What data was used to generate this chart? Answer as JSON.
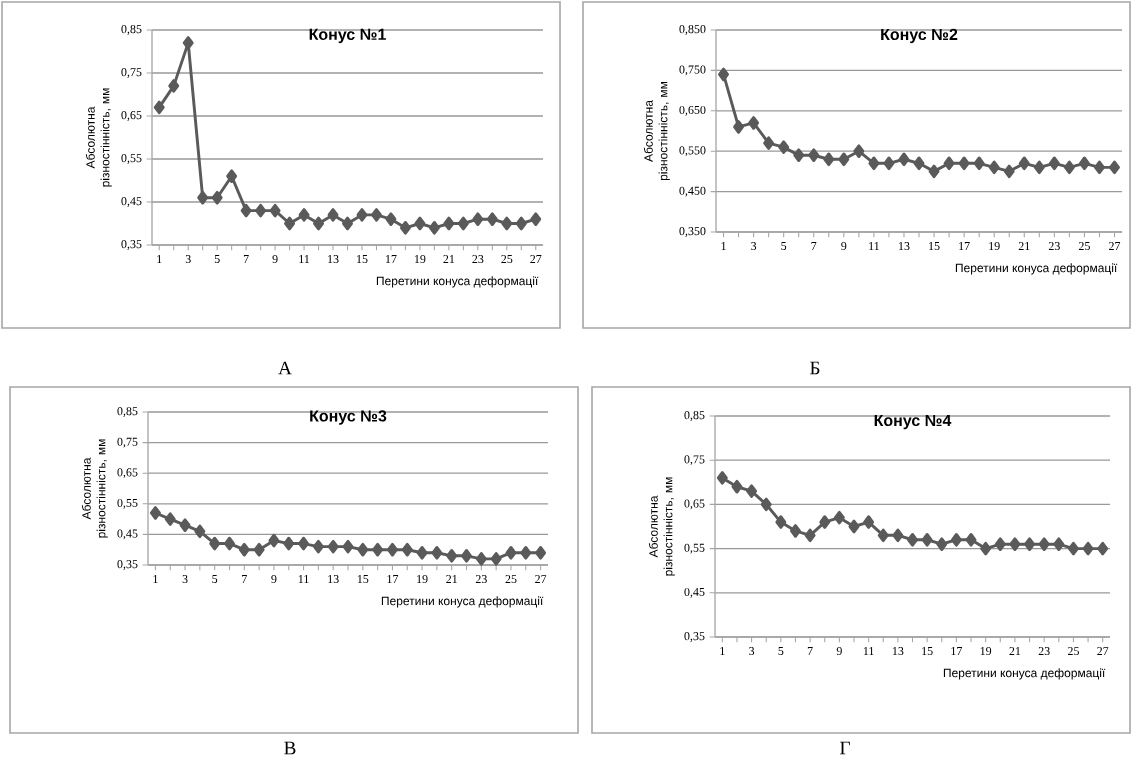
{
  "chart_data": [
    {
      "type": "line",
      "title": "Конус №1",
      "xlabel": "Перетини  конуса деформації",
      "ylabel": "Абсолютна різностінність, мм",
      "categories": [
        "1",
        null,
        "3",
        null,
        "5",
        null,
        "7",
        null,
        "9",
        null,
        "11",
        null,
        "13",
        null,
        "15",
        null,
        "17",
        null,
        "19",
        null,
        "21",
        null,
        "23",
        null,
        "25",
        null,
        "27"
      ],
      "values": [
        0.67,
        0.72,
        0.82,
        0.46,
        0.46,
        0.51,
        0.43,
        0.43,
        0.43,
        0.4,
        0.42,
        0.4,
        0.42,
        0.4,
        0.42,
        0.42,
        0.41,
        0.39,
        0.4,
        0.39,
        0.4,
        0.4,
        0.41,
        0.41,
        0.4,
        0.4,
        0.41
      ],
      "color": "#5a5a5a",
      "marker": "diamond",
      "grid": "y",
      "ylim": [
        0.35,
        0.85
      ],
      "yticks": [
        {
          "value": 0.35,
          "label": "0,35"
        },
        {
          "value": 0.45,
          "label": "0,45"
        },
        {
          "value": 0.55,
          "label": "0,55"
        },
        {
          "value": 0.65,
          "label": "0,65"
        },
        {
          "value": 0.75,
          "label": "0,75"
        },
        {
          "value": 0.85,
          "label": "0,85"
        }
      ],
      "annotations": [
        "А"
      ]
    },
    {
      "type": "line",
      "title": "Конус №2",
      "xlabel": "Перетини  конуса деформації",
      "ylabel": "Абсолютна різностінність, мм",
      "categories": [
        "1",
        null,
        "3",
        null,
        "5",
        null,
        "7",
        null,
        "9",
        null,
        "11",
        null,
        "13",
        null,
        "15",
        null,
        "17",
        null,
        "19",
        null,
        "21",
        null,
        "23",
        null,
        "25",
        null,
        "27"
      ],
      "values": [
        0.74,
        0.61,
        0.62,
        0.57,
        0.56,
        0.54,
        0.54,
        0.53,
        0.53,
        0.55,
        0.52,
        0.52,
        0.53,
        0.52,
        0.5,
        0.52,
        0.52,
        0.52,
        0.51,
        0.5,
        0.52,
        0.51,
        0.52,
        0.51,
        0.52,
        0.51,
        0.51
      ],
      "color": "#5a5a5a",
      "marker": "diamond",
      "grid": "y",
      "ylim": [
        0.35,
        0.85
      ],
      "yticks": [
        {
          "value": 0.35,
          "label": "0,350"
        },
        {
          "value": 0.45,
          "label": "0,450"
        },
        {
          "value": 0.55,
          "label": "0,550"
        },
        {
          "value": 0.65,
          "label": "0,650"
        },
        {
          "value": 0.75,
          "label": "0,750"
        },
        {
          "value": 0.85,
          "label": "0,850"
        }
      ],
      "annotations": [
        "Б"
      ]
    },
    {
      "type": "line",
      "title": "Конус №3",
      "xlabel": "Перетини  конуса деформації",
      "ylabel": "Абсолютна різностінність, мм",
      "categories": [
        "1",
        null,
        "3",
        null,
        "5",
        null,
        "7",
        null,
        "9",
        null,
        "11",
        null,
        "13",
        null,
        "15",
        null,
        "17",
        null,
        "19",
        null,
        "21",
        null,
        "23",
        null,
        "25",
        null,
        "27"
      ],
      "values": [
        0.52,
        0.5,
        0.48,
        0.46,
        0.42,
        0.42,
        0.4,
        0.4,
        0.43,
        0.42,
        0.42,
        0.41,
        0.41,
        0.41,
        0.4,
        0.4,
        0.4,
        0.4,
        0.39,
        0.39,
        0.38,
        0.38,
        0.37,
        0.37,
        0.39,
        0.39,
        0.39
      ],
      "color": "#5a5a5a",
      "marker": "diamond",
      "grid": "y",
      "ylim": [
        0.35,
        0.85
      ],
      "yticks": [
        {
          "value": 0.35,
          "label": "0,35"
        },
        {
          "value": 0.45,
          "label": "0,45"
        },
        {
          "value": 0.55,
          "label": "0,55"
        },
        {
          "value": 0.65,
          "label": "0,65"
        },
        {
          "value": 0.75,
          "label": "0,75"
        },
        {
          "value": 0.85,
          "label": "0,85"
        }
      ],
      "annotations": [
        "В"
      ]
    },
    {
      "type": "line",
      "title": "Конус №4",
      "xlabel": "Перетини  конуса деформації",
      "ylabel": "Абсолютна різностінність, мм",
      "categories": [
        "1",
        null,
        "3",
        null,
        "5",
        null,
        "7",
        null,
        "9",
        null,
        "11",
        null,
        "13",
        null,
        "15",
        null,
        "17",
        null,
        "19",
        null,
        "21",
        null,
        "23",
        null,
        "25",
        null,
        "27"
      ],
      "values": [
        0.71,
        0.69,
        0.68,
        0.65,
        0.61,
        0.59,
        0.58,
        0.61,
        0.62,
        0.6,
        0.61,
        0.58,
        0.58,
        0.57,
        0.57,
        0.56,
        0.57,
        0.57,
        0.55,
        0.56,
        0.56,
        0.56,
        0.56,
        0.56,
        0.55,
        0.55,
        0.55
      ],
      "color": "#5a5a5a",
      "marker": "diamond",
      "grid": "y",
      "ylim": [
        0.35,
        0.85
      ],
      "yticks": [
        {
          "value": 0.35,
          "label": "0,35"
        },
        {
          "value": 0.45,
          "label": "0,45"
        },
        {
          "value": 0.55,
          "label": "0,55"
        },
        {
          "value": 0.65,
          "label": "0,65"
        },
        {
          "value": 0.75,
          "label": "0,75"
        },
        {
          "value": 0.85,
          "label": "0,85"
        }
      ],
      "annotations": [
        "Г"
      ]
    }
  ]
}
